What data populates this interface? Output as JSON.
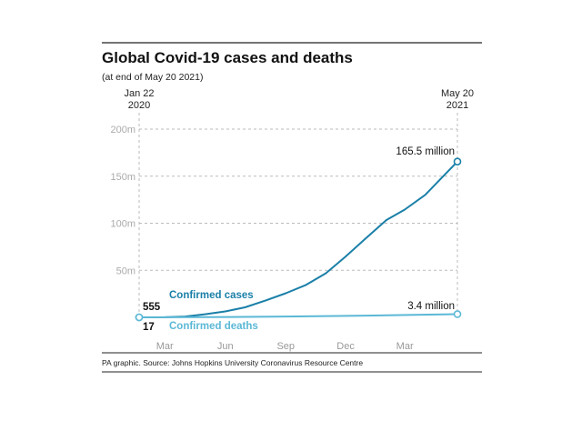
{
  "chart_data": {
    "type": "line",
    "title": "Global Covid-19 cases and deaths",
    "subtitle": "(at end of May 20 2021)",
    "start_label": [
      "Jan 22",
      "2020"
    ],
    "end_label": [
      "May 20",
      "2021"
    ],
    "x_ticks": [
      "Mar",
      "Jun",
      "Sep",
      "Dec",
      "Mar"
    ],
    "y_ticks": [
      "200m",
      "150m",
      "100m",
      "50m"
    ],
    "y_tick_values": [
      200,
      150,
      100,
      50
    ],
    "ylim": [
      0,
      200
    ],
    "y_unit": "millions",
    "grid": true,
    "series": [
      {
        "name": "Confirmed cases",
        "color": "#1a7fa8",
        "x": [
          "2020-01-22",
          "2020-03-01",
          "2020-04-01",
          "2020-05-01",
          "2020-06-01",
          "2020-07-01",
          "2020-08-01",
          "2020-09-01",
          "2020-10-01",
          "2020-11-01",
          "2020-12-01",
          "2021-01-01",
          "2021-02-01",
          "2021-03-01",
          "2021-04-01",
          "2021-05-20"
        ],
        "values": [
          0.000555,
          0.09,
          0.9,
          3.3,
          6.3,
          10.6,
          17.8,
          25.6,
          34.2,
          46.9,
          64.6,
          84.2,
          103.4,
          114.5,
          130.1,
          165.5
        ],
        "start_label": "555",
        "end_label": "165.5 million"
      },
      {
        "name": "Confirmed deaths",
        "color": "#5bb8d6",
        "x": [
          "2020-01-22",
          "2020-05-01",
          "2020-09-01",
          "2021-01-01",
          "2021-05-20"
        ],
        "values": [
          1.7e-05,
          0.23,
          0.85,
          1.83,
          3.4
        ],
        "start_label": "17",
        "end_label": "3.4 million"
      }
    ],
    "source": "PA graphic. Source: Johns Hopkins University Coronavirus Resource Centre"
  }
}
